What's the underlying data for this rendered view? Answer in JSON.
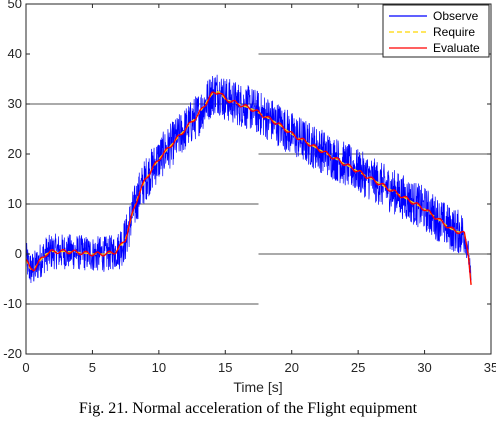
{
  "chart_data": {
    "type": "line",
    "xlabel": "Time [s]",
    "ylabel": "",
    "xlim": [
      0,
      35
    ],
    "ylim": [
      -20,
      50
    ],
    "xticks": [
      0,
      5,
      10,
      15,
      20,
      25,
      30,
      35
    ],
    "yticks": [
      -20,
      -10,
      0,
      10,
      20,
      30,
      40,
      50
    ],
    "grid": "horizontal lines at y=-10, 10, 30 (left part) and y=0, 20, 40 (right part)",
    "legend_position": "top-right",
    "series": [
      {
        "name": "Observe",
        "color": "#0000ff",
        "style": "solid",
        "noise_amplitude": 4.5,
        "x": [
          0,
          0.3,
          0.6,
          1,
          1.5,
          2,
          3,
          4,
          5,
          6,
          6.8,
          7.5,
          8,
          8.5,
          9,
          10,
          11,
          12,
          13,
          13.5,
          14,
          14.5,
          15,
          16,
          17,
          18,
          19,
          20,
          22,
          24,
          26,
          28,
          30,
          31,
          32,
          33,
          33.3,
          33.5
        ],
        "y": [
          -1,
          -3,
          -3,
          -1.5,
          0,
          0.5,
          0.5,
          0.3,
          0,
          0,
          0.5,
          3,
          8,
          12,
          15,
          19,
          22,
          25,
          28,
          30,
          32,
          32.5,
          31,
          30,
          29,
          27.5,
          26,
          24,
          21,
          18,
          15,
          12,
          9,
          7,
          5,
          4,
          0,
          -6
        ]
      },
      {
        "name": "Require",
        "color": "#ffd700",
        "style": "dashed",
        "x": [
          0,
          0.3,
          0.6,
          1,
          1.5,
          2,
          3,
          4,
          5,
          6,
          6.8,
          7.5,
          8,
          8.5,
          9,
          10,
          11,
          12,
          13,
          13.5,
          14,
          14.5,
          15,
          16,
          17,
          18,
          19,
          20,
          22,
          24,
          26,
          28,
          30,
          31,
          32,
          33,
          33.3,
          33.5
        ],
        "y": [
          -1,
          -3,
          -3,
          -1.5,
          0,
          0.5,
          0.5,
          0.3,
          0,
          0,
          0.5,
          3,
          8,
          12,
          15,
          19,
          22,
          25,
          28,
          30,
          32,
          32.5,
          31,
          30,
          29,
          27.5,
          26,
          24,
          21,
          18,
          15,
          12,
          9,
          7,
          5,
          4,
          0,
          -6
        ]
      },
      {
        "name": "Evaluate",
        "color": "#ff0000",
        "style": "solid",
        "x": [
          0,
          0.3,
          0.6,
          1,
          1.5,
          2,
          3,
          4,
          5,
          6,
          6.8,
          7.5,
          8,
          8.5,
          9,
          10,
          11,
          12,
          13,
          13.5,
          14,
          14.5,
          15,
          16,
          17,
          18,
          19,
          20,
          22,
          24,
          26,
          28,
          30,
          31,
          32,
          33,
          33.3,
          33.5
        ],
        "y": [
          -1,
          -3,
          -3,
          -1.5,
          0,
          0.5,
          0.5,
          0.3,
          0,
          0,
          0.5,
          3,
          8,
          12,
          15,
          19,
          22,
          25,
          28,
          30,
          32,
          32.5,
          31,
          30,
          29,
          27.5,
          26,
          24,
          21,
          18,
          15,
          12,
          9,
          7,
          5,
          4,
          0,
          -6
        ]
      }
    ],
    "caption": "Fig. 21. Normal acceleration of the Flight equipment"
  }
}
